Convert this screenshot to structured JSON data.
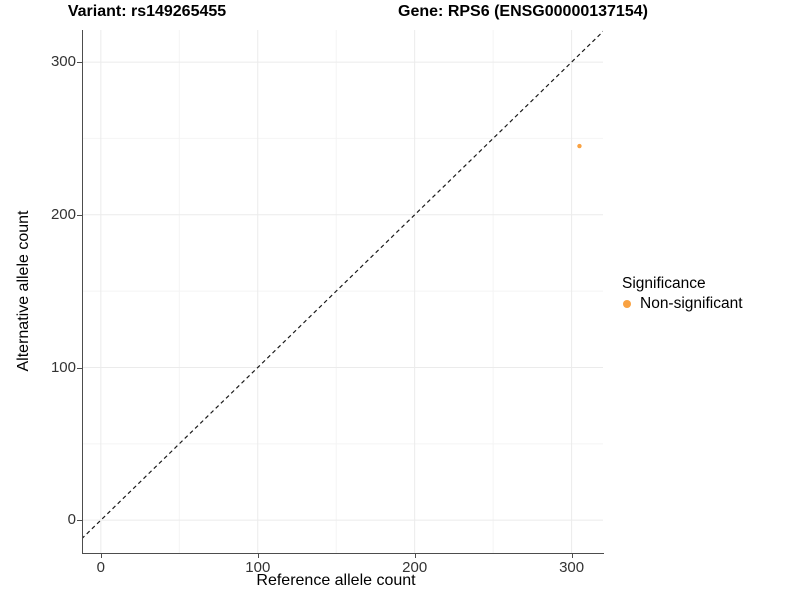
{
  "titles": {
    "variant": "Variant: rs149265455",
    "gene": "Gene: RPS6 (ENSG00000137154)"
  },
  "chart_data": {
    "type": "scatter",
    "title": "Variant: rs149265455 | Gene: RPS6 (ENSG00000137154)",
    "xlabel": "Reference allele count",
    "ylabel": "Alternative allele count",
    "xlim": [
      -12,
      320
    ],
    "ylim": [
      -21.5,
      321
    ],
    "x_ticks": [
      0,
      100,
      200,
      300
    ],
    "y_ticks": [
      0,
      100,
      200,
      300
    ],
    "x_minor_ticks": [
      50,
      150,
      250
    ],
    "y_minor_ticks": [
      50,
      150,
      250
    ],
    "grid": "on",
    "identity_line": {
      "type": "abline",
      "slope": 1,
      "intercept": 0,
      "style": "dashed",
      "color": "#1A1A1A"
    },
    "series": [
      {
        "name": "Non-significant",
        "color": "#F9A242",
        "points": [
          {
            "x": 305,
            "y": 245
          }
        ]
      }
    ],
    "legend": {
      "position": "right",
      "title": "Significance",
      "entries": [
        {
          "label": "Non-significant",
          "color": "#F9A242"
        }
      ]
    },
    "colors": {
      "axis_line": "#4D4D4D",
      "tick_text": "#333333",
      "grid_major": "#EBEBEB",
      "grid_minor": "#F4F4F4",
      "point": "#F9A242",
      "background": "#FFFFFF"
    }
  }
}
